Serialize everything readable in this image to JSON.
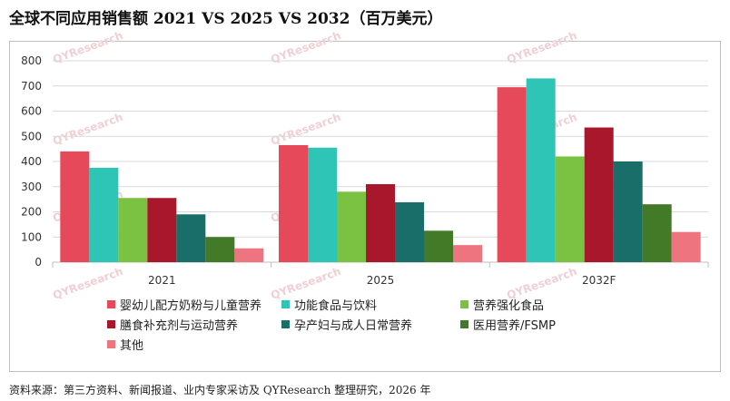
{
  "header": {
    "title": "全球不同应用销售额 2021 VS 2025 VS 2032（百万美元）"
  },
  "footer": {
    "source": "资料来源：第三方资料、新闻报道、业内专家采访及 QYResearch 整理研究，2026 年"
  },
  "watermark": "QYResearch",
  "chart_data": {
    "type": "bar",
    "title": "全球不同应用销售额 2021 VS 2025 VS 2032（百万美元）",
    "categories": [
      "2021",
      "2025",
      "2032F"
    ],
    "ylim": [
      0,
      800
    ],
    "yticks": [
      0,
      100,
      200,
      300,
      400,
      500,
      600,
      700,
      800
    ],
    "grid": true,
    "legend_position": "bottom",
    "series": [
      {
        "name": "婴幼儿配方奶粉与儿童营养",
        "color": "#e64a5a",
        "values": [
          440,
          465,
          695
        ]
      },
      {
        "name": "功能食品与饮料",
        "color": "#2ec4b6",
        "values": [
          375,
          455,
          730
        ]
      },
      {
        "name": "营养强化食品",
        "color": "#7cc242",
        "values": [
          255,
          280,
          420
        ]
      },
      {
        "name": "膳食补充剂与运动营养",
        "color": "#a8172b",
        "values": [
          255,
          310,
          535
        ]
      },
      {
        "name": "孕产妇与成人日常营养",
        "color": "#1a6e6a",
        "values": [
          190,
          238,
          400
        ]
      },
      {
        "name": "医用营养/FSMP",
        "color": "#437a28",
        "values": [
          100,
          125,
          230
        ]
      },
      {
        "name": "其他",
        "color": "#ee7580",
        "values": [
          55,
          68,
          120
        ]
      }
    ]
  }
}
